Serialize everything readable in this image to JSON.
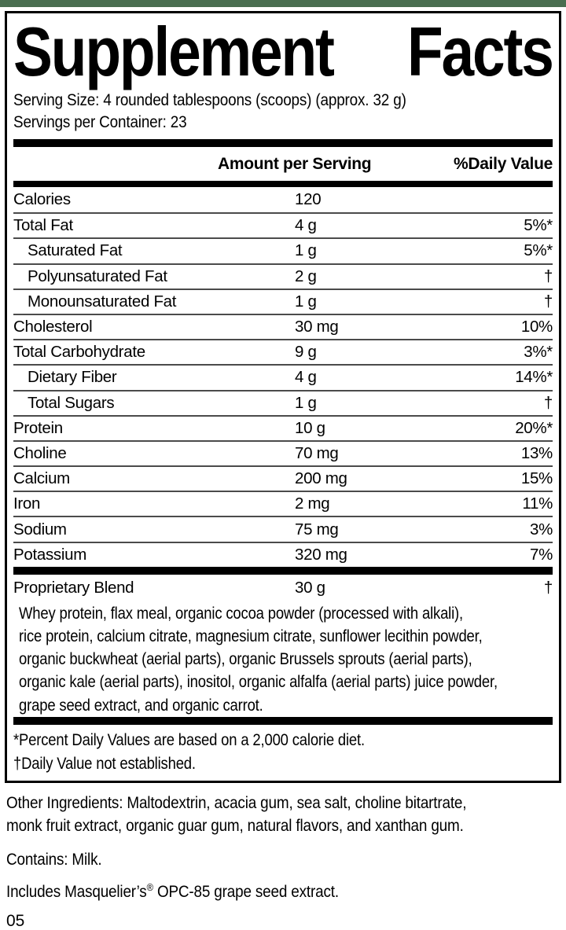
{
  "colors": {
    "top_strip_green": "#4a6e50",
    "bar_black": "#000000",
    "hairline_gray": "#4b4b4b"
  },
  "label": {
    "title_word1": "Supplement",
    "title_word2": "Facts",
    "serving_info": "Serving Size: 4 rounded tablespoons (scoops) (approx. 32 g)\nServings per Container: 23",
    "columns": {
      "amount": "Amount per Serving",
      "daily_value": "%Daily Value"
    },
    "rows": [
      {
        "name": "Calories",
        "amount": "120",
        "dv": "",
        "indent": false
      },
      {
        "name": "Total Fat",
        "amount": "4 g",
        "dv": "5%*",
        "indent": false
      },
      {
        "name": "Saturated Fat",
        "amount": "1 g",
        "dv": "5%*",
        "indent": true
      },
      {
        "name": "Polyunsaturated Fat",
        "amount": "2 g",
        "dv": "†",
        "indent": true
      },
      {
        "name": "Monounsaturated Fat",
        "amount": "1 g",
        "dv": "†",
        "indent": true
      },
      {
        "name": "Cholesterol",
        "amount": "30 mg",
        "dv": "10%",
        "indent": false
      },
      {
        "name": "Total Carbohydrate",
        "amount": "9 g",
        "dv": "3%*",
        "indent": false
      },
      {
        "name": "Dietary Fiber",
        "amount": "4 g",
        "dv": "14%*",
        "indent": true
      },
      {
        "name": "Total Sugars",
        "amount": "1 g",
        "dv": "†",
        "indent": true
      },
      {
        "name": "Protein",
        "amount": "10 g",
        "dv": "20%*",
        "indent": false
      },
      {
        "name": "Choline",
        "amount": "70 mg",
        "dv": "13%",
        "indent": false
      },
      {
        "name": "Calcium",
        "amount": "200 mg",
        "dv": "15%",
        "indent": false
      },
      {
        "name": "Iron",
        "amount": "2 mg",
        "dv": "11%",
        "indent": false
      },
      {
        "name": "Sodium",
        "amount": "75 mg",
        "dv": "3%",
        "indent": false
      },
      {
        "name": "Potassium",
        "amount": "320 mg",
        "dv": "7%",
        "indent": false
      }
    ],
    "proprietary_blend": {
      "name": "Proprietary Blend",
      "amount": "30 g",
      "dv": "†",
      "description": "Whey protein, flax meal, organic cocoa powder (processed with alkali),\nrice protein, calcium citrate, magnesium citrate, sunflower lecithin powder,\norganic buckwheat (aerial parts), organic Brussels sprouts (aerial parts),\norganic kale (aerial parts), inositol, organic alfalfa (aerial parts) juice powder,\ngrape seed extract, and organic carrot."
    },
    "footnotes": "*Percent Daily Values are based on a 2,000 calorie diet.\n†Daily Value not established."
  },
  "below_label": {
    "other_ingredients": "Other Ingredients: Maltodextrin, acacia gum, sea salt, choline bitartrate,\nmonk fruit extract, organic guar gum, natural flavors, and xanthan gum.",
    "contains": "Contains: Milk.",
    "includes_pre": "Includes Masquelier’s",
    "includes_reg": "®",
    "includes_post": " OPC-85 grape seed extract.",
    "code_number": "05"
  }
}
